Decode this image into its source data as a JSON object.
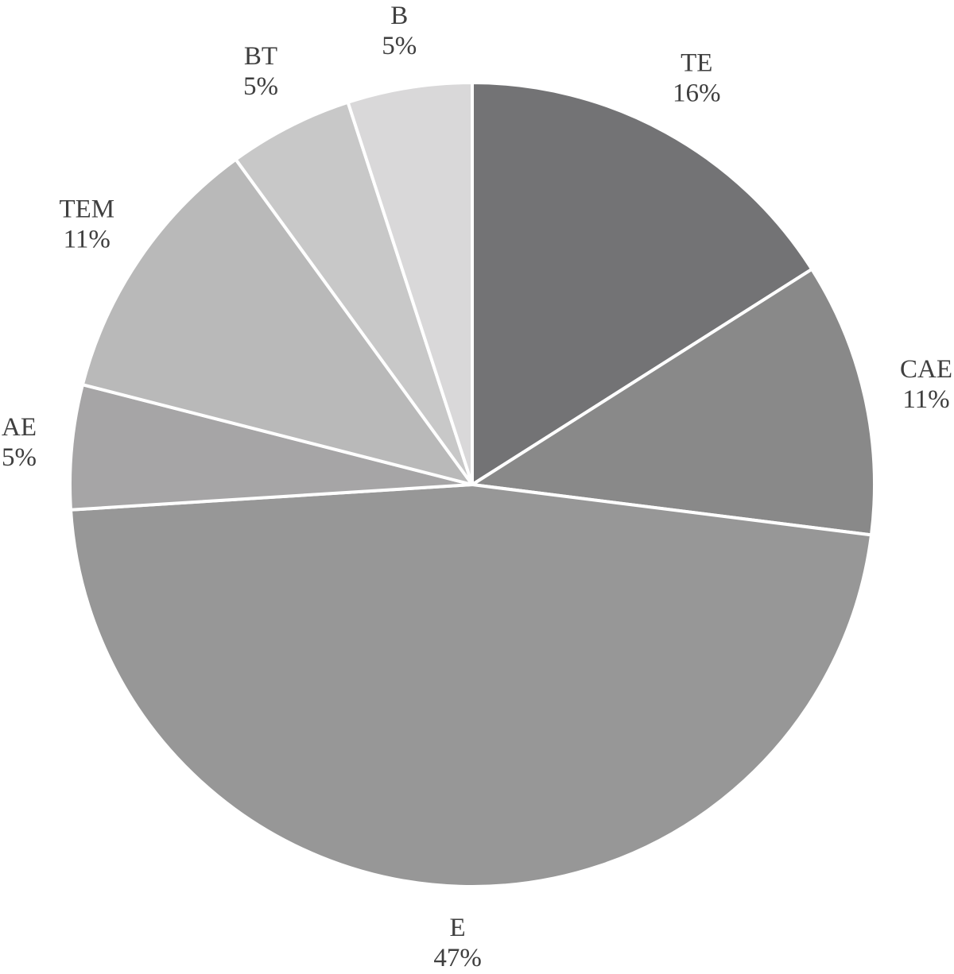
{
  "chart_data": {
    "type": "pie",
    "title": "",
    "start": "12 o'clock",
    "direction": "clockwise",
    "slices": [
      {
        "label": "TE",
        "value": 16,
        "value_label": "16%",
        "color": "#737375"
      },
      {
        "label": "CAE",
        "value": 11,
        "value_label": "11%",
        "color": "#898989"
      },
      {
        "label": "E",
        "value": 47,
        "value_label": "47%",
        "color": "#979797"
      },
      {
        "label": "AE",
        "value": 5,
        "value_label": "5%",
        "color": "#a6a5a6"
      },
      {
        "label": "TEM",
        "value": 11,
        "value_label": "11%",
        "color": "#b9b9b9"
      },
      {
        "label": "BT",
        "value": 5,
        "value_label": "5%",
        "color": "#c8c8c8"
      },
      {
        "label": "B",
        "value": 5,
        "value_label": "5%",
        "color": "#d9d8d9"
      }
    ]
  }
}
